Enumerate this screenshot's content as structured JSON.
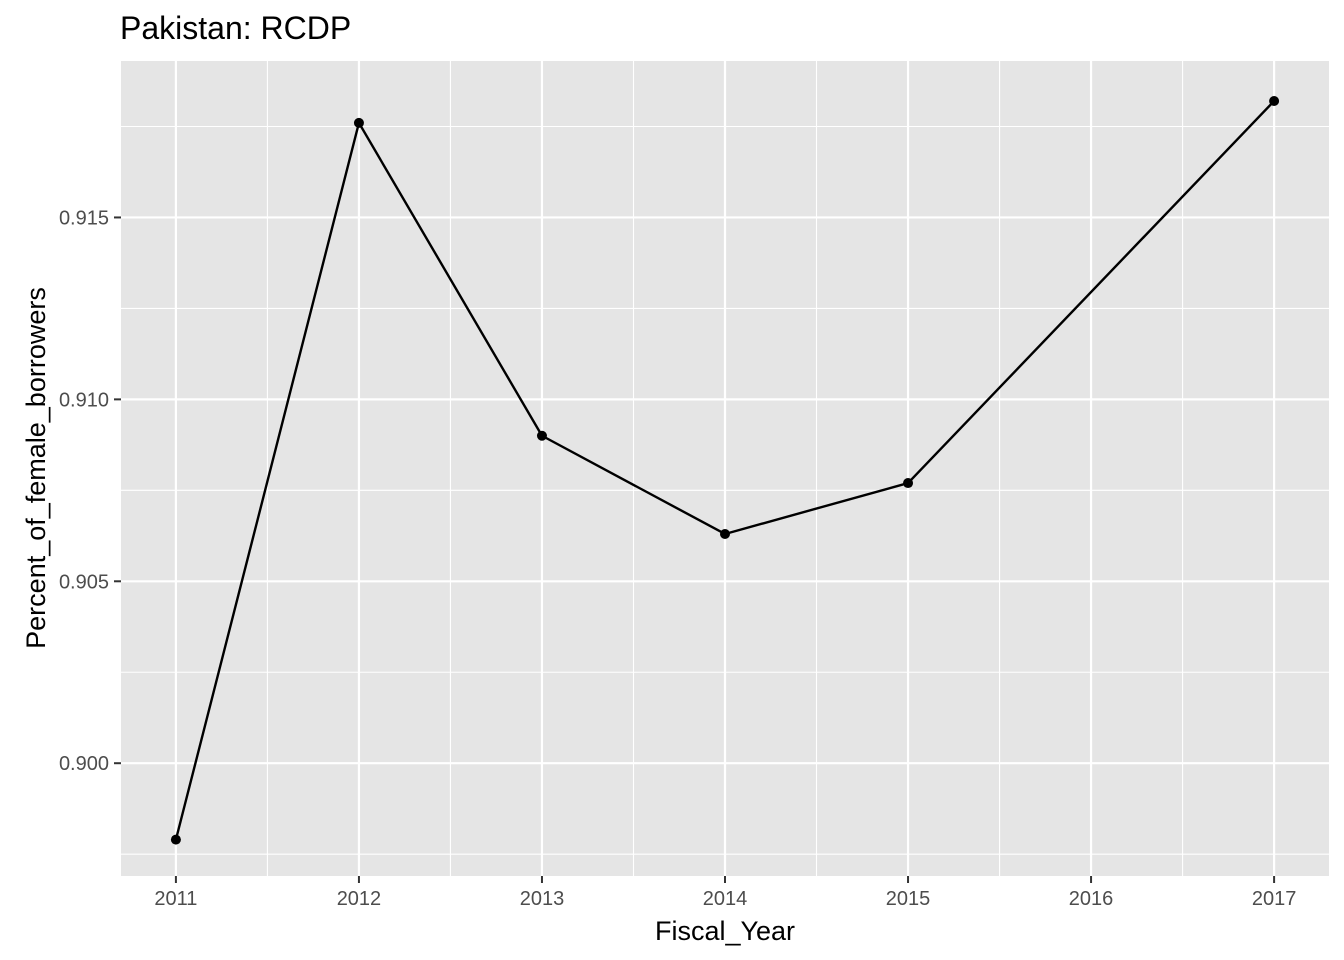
{
  "chart_data": {
    "type": "line",
    "title": "Pakistan:  RCDP",
    "xlabel": "Fiscal_Year",
    "ylabel": "Percent_of_female_borrowers",
    "x": [
      2011,
      2012,
      2013,
      2014,
      2015,
      2017
    ],
    "series": [
      {
        "values": [
          0.8979,
          0.9176,
          0.909,
          0.9063,
          0.9077,
          0.9182
        ]
      }
    ],
    "xlim": [
      2010.7,
      2017.3
    ],
    "ylim": [
      0.8969,
      0.9193
    ],
    "x_ticks": [
      2011,
      2012,
      2013,
      2014,
      2015,
      2016,
      2017
    ],
    "x_tick_labels": [
      "2011",
      "2012",
      "2013",
      "2014",
      "2015",
      "2016",
      "2017"
    ],
    "y_ticks": [
      0.9,
      0.905,
      0.91,
      0.915
    ],
    "y_tick_labels": [
      "0.900",
      "0.905",
      "0.910",
      "0.915"
    ],
    "grid": true,
    "panel_background": "#e5e5e5",
    "grid_color": "#ffffff",
    "line_color": "#000000",
    "point_color": "#000000"
  }
}
